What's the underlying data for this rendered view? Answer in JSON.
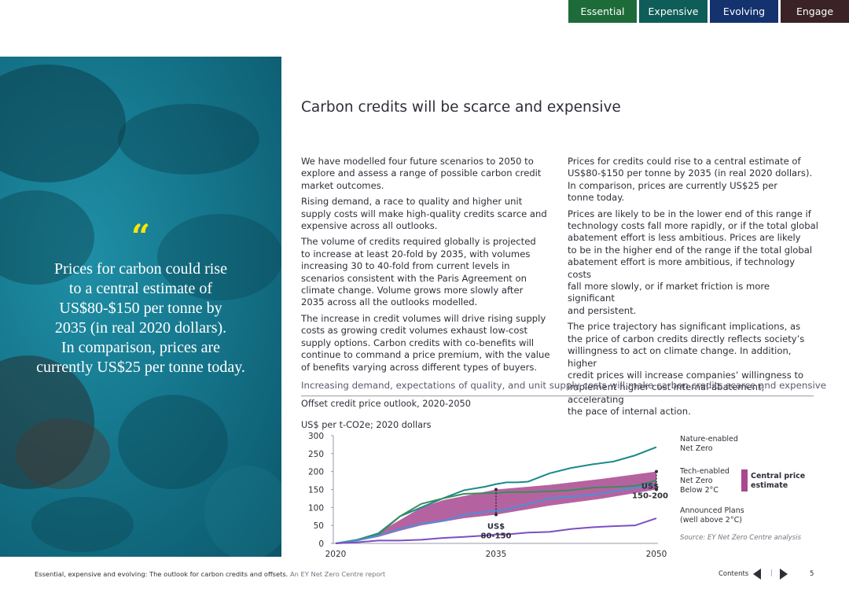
{
  "nav": {
    "tabs": [
      {
        "label": "Essential",
        "color": "#1e6b3a"
      },
      {
        "label": "Expensive",
        "color": "#0f5d58"
      },
      {
        "label": "Evolving",
        "color": "#14326e"
      },
      {
        "label": "Engage",
        "color": "#3a2226"
      }
    ]
  },
  "quote": {
    "mark": "“",
    "lines": [
      "Prices for carbon could rise",
      "to a central estimate of",
      "US$80-$150 per tonne by",
      "2035 (in real 2020 dollars).",
      "In comparison, prices are",
      "currently US$25 per tonne today."
    ]
  },
  "article": {
    "title": "Carbon credits will be scarce and expensive",
    "col1": [
      [
        "We have modelled four future scenarios to 2050 to",
        "explore and assess a range of possible carbon credit",
        "market outcomes."
      ],
      [
        "Rising demand, a race to quality and higher unit",
        "supply costs will make high-quality credits scarce and",
        "expensive across all outlooks."
      ],
      [
        "The volume of credits required globally is projected",
        "to increase at least 20-fold by 2035, with volumes",
        "increasing 30 to 40-fold from current levels in",
        "scenarios consistent with the Paris Agreement on",
        "climate change. Volume grows more slowly after",
        "2035 across all the outlooks modelled."
      ],
      [
        "The increase in credit volumes will drive rising supply",
        "costs as growing credit volumes exhaust low-cost",
        "supply options. Carbon credits with co-benefits will",
        "continue to command a price premium, with the value",
        "of benefits varying across different types of buyers."
      ]
    ],
    "col2": [
      [
        "Prices for credits could rise to a central estimate of",
        "US$80-$150 per tonne by 2035 (in real 2020 dollars).",
        "In comparison, prices are currently US$25 per",
        "tonne today."
      ],
      [
        "Prices are likely to be in the lower end of this range if",
        "technology costs fall more rapidly, or if the total global",
        "abatement effort is less ambitious. Prices are likely",
        "to be in the higher end of the range if the total global",
        "abatement effort is more ambitious, if technology costs",
        "fall more slowly, or if market friction is more significant",
        "and persistent."
      ],
      [
        "The price trajectory has significant implications, as",
        "the price of carbon credits directly reflects society’s",
        "willingness to act on climate change. In addition, higher",
        "credit prices will increase companies’ willingness to",
        "implement higher cost internal abatement, accelerating",
        "the pace of internal action."
      ]
    ]
  },
  "chart_data": {
    "type": "line",
    "title": "Increasing demand, expectations of quality, and unit supply costs will make carbon credits scarce and expensive",
    "subtitle": "Offset credit price outlook, 2020-2050",
    "ylabel": "US$ per t-CO2e; 2020 dollars",
    "xlabel": "",
    "xlim": [
      2020,
      2050
    ],
    "ylim": [
      0,
      300
    ],
    "x_ticks": [
      "2020",
      "2035",
      "2050"
    ],
    "y_ticks": [
      "300",
      "250",
      "200",
      "150",
      "100",
      "50",
      "0"
    ],
    "grid": false,
    "legend_position": "right",
    "colors": {
      "band": "#a8488f",
      "nature": "#1a8a8a",
      "tech": "#3d8c5a",
      "below2": "#4a90d9",
      "announced": "#7b4fc4"
    },
    "band": {
      "name": "Central price estimate",
      "x": [
        2020,
        2022,
        2024,
        2026,
        2028,
        2030,
        2032,
        2035,
        2040,
        2045,
        2050
      ],
      "low": [
        0,
        6,
        18,
        35,
        50,
        60,
        70,
        80,
        105,
        125,
        150
      ],
      "high": [
        0,
        10,
        30,
        65,
        100,
        120,
        132,
        150,
        163,
        180,
        200
      ]
    },
    "series": [
      {
        "name": "Nature-enabled Net Zero",
        "x": [
          2020,
          2022,
          2024,
          2026,
          2028,
          2030,
          2032,
          2034,
          2035,
          2036,
          2037,
          2038,
          2040,
          2042,
          2044,
          2046,
          2048,
          2050
        ],
        "values": [
          0,
          10,
          28,
          75,
          100,
          125,
          148,
          158,
          165,
          170,
          170,
          172,
          195,
          210,
          220,
          228,
          245,
          268
        ]
      },
      {
        "name": "Tech-enabled Net Zero",
        "x": [
          2020,
          2022,
          2024,
          2026,
          2028,
          2030,
          2032,
          2034,
          2035,
          2036,
          2038,
          2040,
          2042,
          2044,
          2046,
          2048,
          2050
        ],
        "values": [
          0,
          10,
          25,
          75,
          110,
          125,
          138,
          140,
          140,
          143,
          143,
          145,
          148,
          155,
          157,
          160,
          175
        ]
      },
      {
        "name": "Below 2°C",
        "x": [
          2020,
          2022,
          2024,
          2026,
          2028,
          2030,
          2032,
          2034,
          2035,
          2036,
          2038,
          2040,
          2042,
          2044,
          2046,
          2048,
          2050
        ],
        "values": [
          0,
          8,
          22,
          40,
          55,
          62,
          80,
          88,
          90,
          95,
          110,
          125,
          130,
          135,
          145,
          155,
          165
        ]
      },
      {
        "name": "Announced Plans (well above 2°C)",
        "x": [
          2020,
          2022,
          2024,
          2026,
          2028,
          2030,
          2032,
          2034,
          2035,
          2036,
          2038,
          2040,
          2042,
          2044,
          2046,
          2048,
          2050
        ],
        "values": [
          0,
          3,
          8,
          8,
          10,
          15,
          18,
          22,
          25,
          25,
          30,
          32,
          40,
          45,
          48,
          50,
          70
        ]
      }
    ],
    "annotations": [
      {
        "text": [
          "US$",
          "80-150"
        ],
        "x": 2035
      },
      {
        "text": [
          "US$",
          "150-200"
        ],
        "x": 2050
      }
    ],
    "legend_labels": {
      "nature": [
        "Nature-enabled",
        "Net Zero"
      ],
      "tech": [
        "Tech-enabled",
        "Net Zero",
        "Below 2°C"
      ],
      "band": [
        "Central price",
        "estimate"
      ],
      "announced": [
        "Announced Plans",
        "(well above 2°C)"
      ]
    },
    "source": "Source: EY Net Zero Centre analysis"
  },
  "footer": {
    "title": "Essential, expensive and evolving: The outlook for carbon credits and offsets.",
    "subtitle": " An EY Net Zero Centre report",
    "contents_label": "Contents",
    "separator": "|",
    "page_number": "5"
  }
}
